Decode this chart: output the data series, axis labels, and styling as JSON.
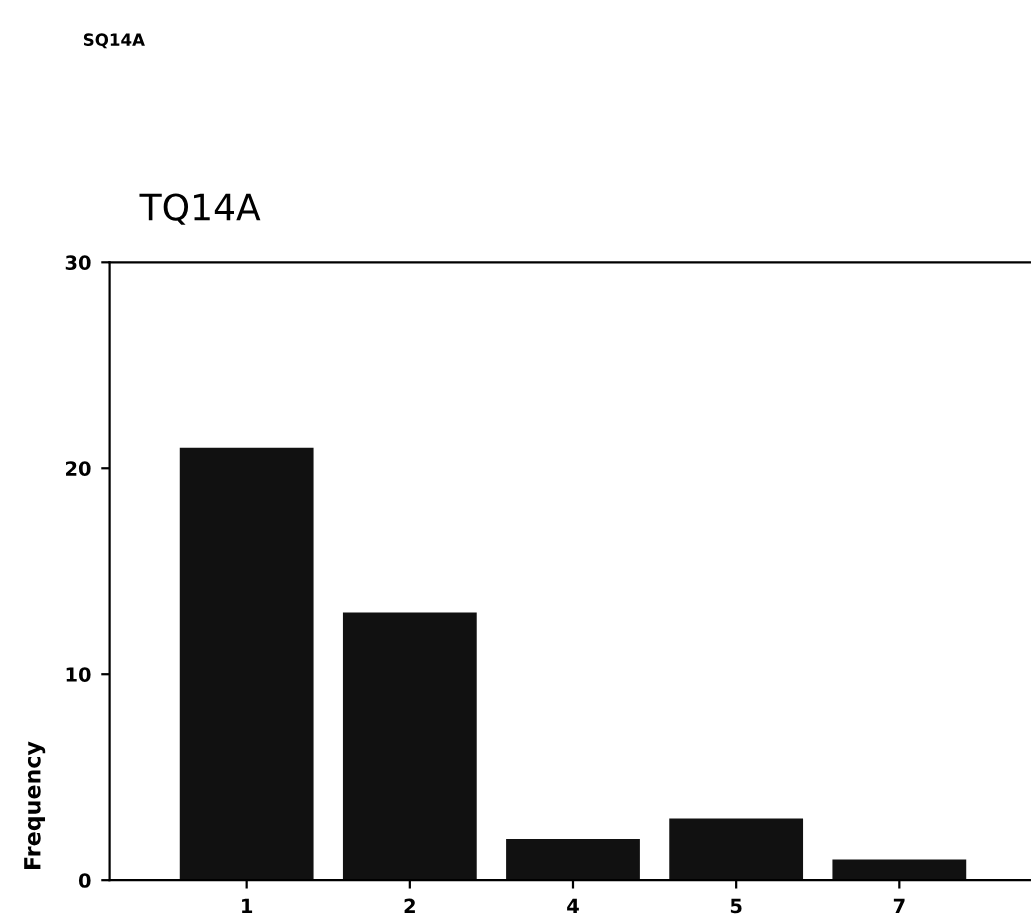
{
  "chart_data": {
    "type": "bar",
    "title": "SQ14A",
    "subtitle": "TQ14A",
    "ylabel": "Frequency",
    "categories": [
      "1",
      "2",
      "4",
      "5",
      "7"
    ],
    "values": [
      21,
      13,
      2,
      3,
      1
    ],
    "color": "#111111",
    "ylim": [
      0,
      30
    ],
    "yticks": [
      0,
      10,
      20,
      30
    ],
    "grid": false
  }
}
